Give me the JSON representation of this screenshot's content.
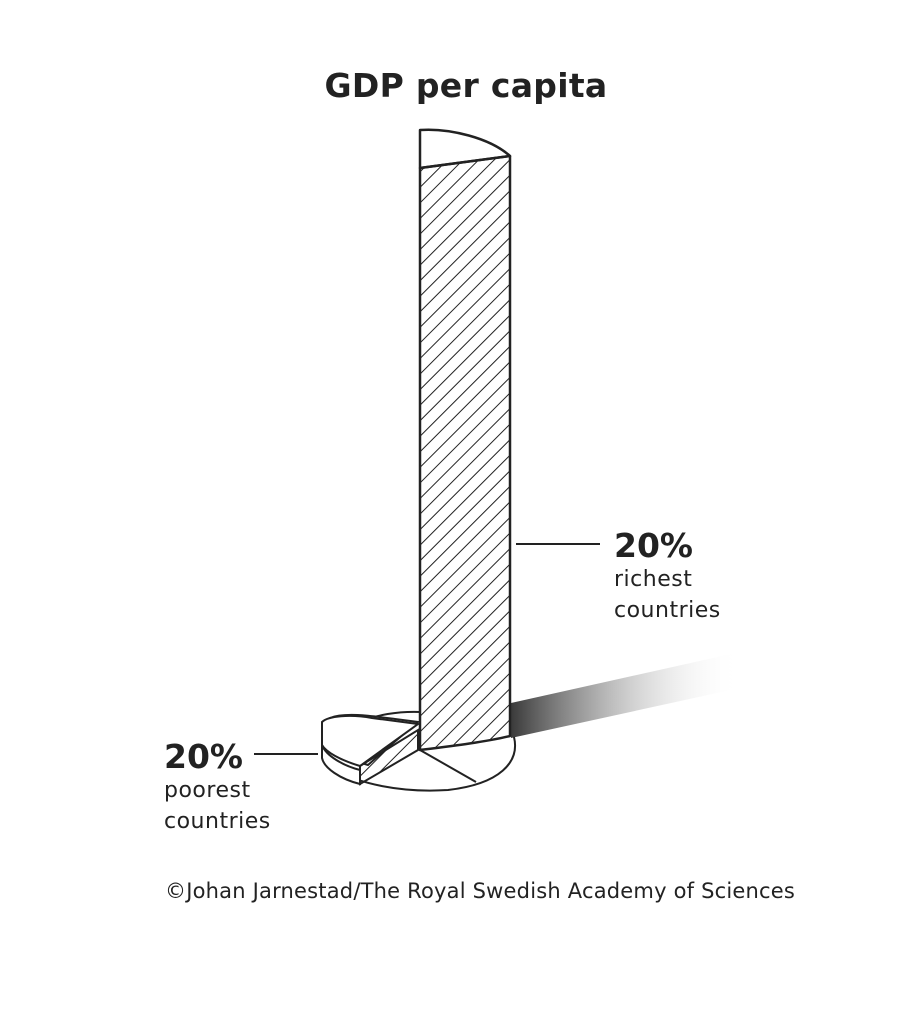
{
  "chart_data": {
    "type": "pie",
    "title": "GDP per capita",
    "slices": [
      {
        "name": "richest",
        "percent_of_countries": 20,
        "label_pct": "20%",
        "label_line1": "richest",
        "label_line2": "countries",
        "relative_height": 1.0,
        "fill": "hatched"
      },
      {
        "name": "poorest",
        "percent_of_countries": 20,
        "label_pct": "20%",
        "label_line1": "poorest",
        "label_line2": "countries",
        "relative_height": 0.06,
        "fill": "hatched"
      }
    ],
    "other_share_percent": 60,
    "style": "3d-extruded-pie"
  },
  "credit": "©Johan Jarnestad/The Royal Swedish Academy of Sciences",
  "colors": {
    "ink": "#222222",
    "background": "#ffffff"
  }
}
